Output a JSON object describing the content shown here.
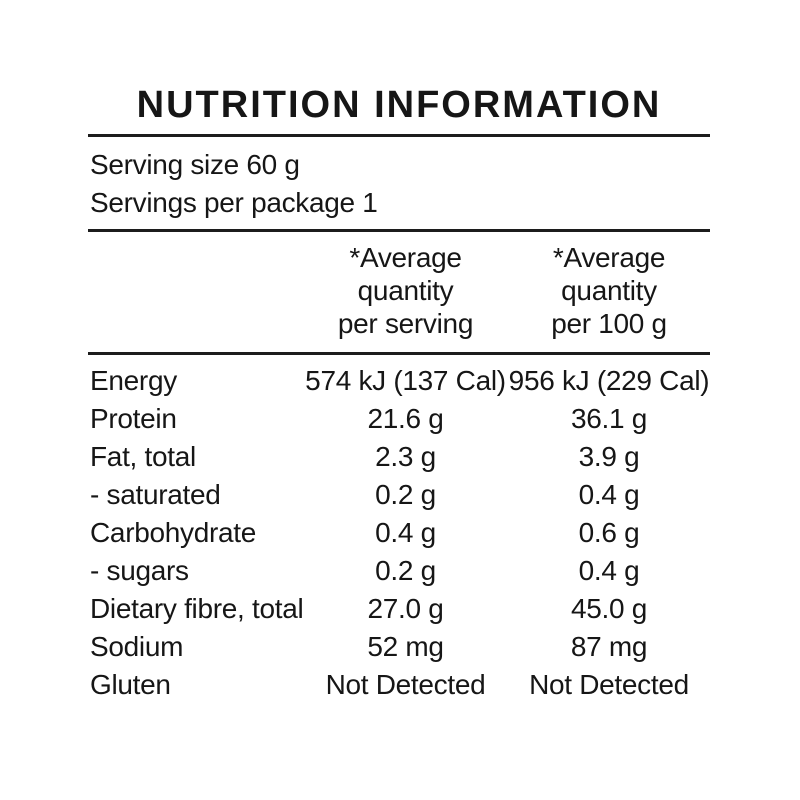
{
  "title": "NUTRITION INFORMATION",
  "serving_info": {
    "serving_size": "Serving size 60 g",
    "servings_per_package": "Servings per package 1"
  },
  "table": {
    "column_headers": {
      "per_serving": {
        "line1": "*Average",
        "line2": "quantity",
        "line3": "per serving"
      },
      "per_100g": {
        "line1": "*Average",
        "line2": "quantity",
        "line3": "per 100 g"
      }
    },
    "rows": [
      {
        "nutrient": "Energy",
        "per_serving": "574 kJ (137 Cal)",
        "per_100g": "956 kJ (229 Cal)"
      },
      {
        "nutrient": "Protein",
        "per_serving": "21.6 g",
        "per_100g": "36.1 g"
      },
      {
        "nutrient": "Fat, total",
        "per_serving": "2.3 g",
        "per_100g": "3.9 g"
      },
      {
        "nutrient": "- saturated",
        "per_serving": "0.2 g",
        "per_100g": "0.4 g"
      },
      {
        "nutrient": "Carbohydrate",
        "per_serving": "0.4 g",
        "per_100g": "0.6 g"
      },
      {
        "nutrient": "- sugars",
        "per_serving": "0.2 g",
        "per_100g": "0.4 g"
      },
      {
        "nutrient": "Dietary fibre, total",
        "per_serving": "27.0 g",
        "per_100g": "45.0 g"
      },
      {
        "nutrient": "Sodium",
        "per_serving": "52 mg",
        "per_100g": "87 mg"
      },
      {
        "nutrient": "Gluten",
        "per_serving": "Not Detected",
        "per_100g": "Not Detected"
      }
    ]
  },
  "colors": {
    "text": "#161616",
    "background": "#ffffff",
    "rule": "#1c1c1c"
  }
}
